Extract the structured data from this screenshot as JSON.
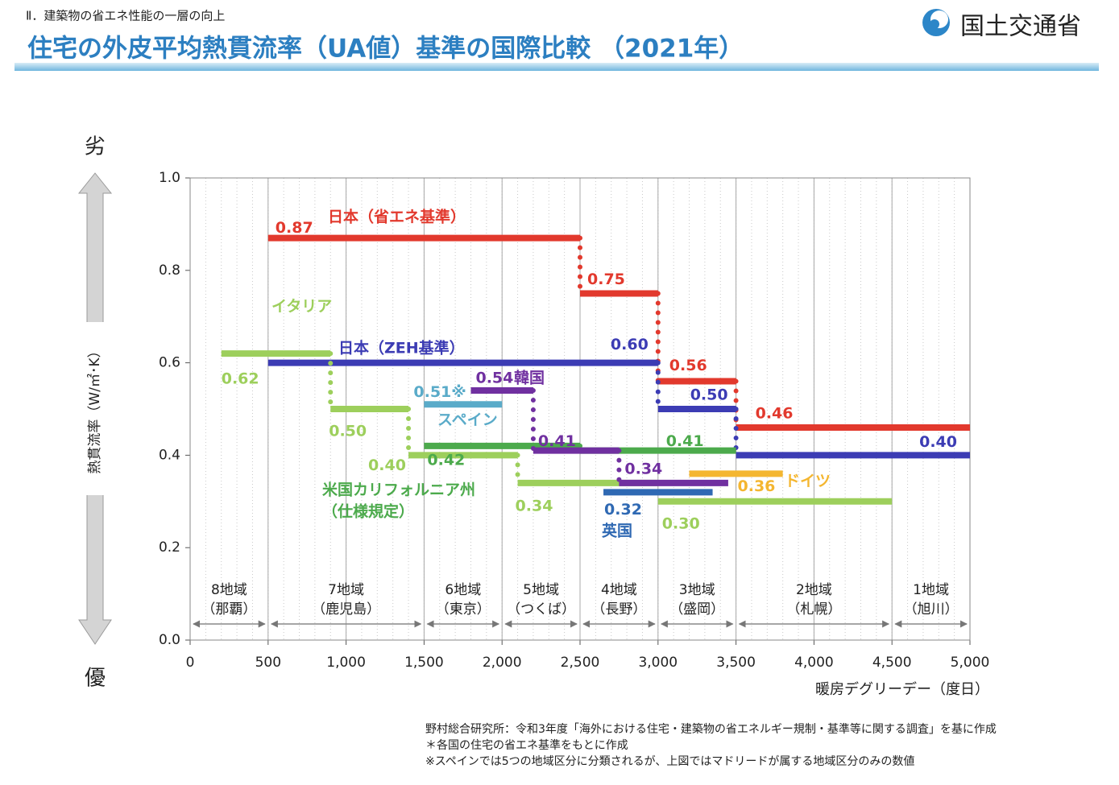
{
  "header": {
    "section": "Ⅱ．建築物の省エネ性能の一層の向上",
    "title": "住宅の外皮平均熱貫流率（UA値）基準の国際比較 （2021年）",
    "logo": "国土交通省"
  },
  "chart_data": {
    "type": "step",
    "y_label": "熱貫流率（W/㎡･K）",
    "y_top_label": "劣",
    "y_bottom_label": "優",
    "x_label": "暖房デグリーデー（度日）",
    "xlim": [
      0,
      5000
    ],
    "xticks": [
      0,
      500,
      {
        "value": 1000,
        "label": "1,000"
      },
      {
        "value": 1500,
        "label": "1,500"
      },
      {
        "value": 2000,
        "label": "2,000"
      },
      {
        "value": 2500,
        "label": "2,500"
      },
      {
        "value": 3000,
        "label": "3,000"
      },
      {
        "value": 3500,
        "label": "3,500"
      },
      {
        "value": 4000,
        "label": "4,000"
      },
      {
        "value": 4500,
        "label": "4,500"
      },
      {
        "value": 5000,
        "label": "5,000"
      }
    ],
    "ylim": [
      0,
      1
    ],
    "yticks": [
      {
        "value": 0,
        "label": "0.0"
      },
      0.2,
      0.4,
      0.6,
      0.8,
      {
        "value": 1,
        "label": "1.0"
      }
    ],
    "grid": "x",
    "regions": [
      {
        "name": "8地域",
        "city": "（那覇）",
        "range": [
          0,
          500
        ]
      },
      {
        "name": "7地域",
        "city": "（鹿児島）",
        "range": [
          500,
          1500
        ]
      },
      {
        "name": "6地域",
        "city": "（東京）",
        "range": [
          1500,
          2000
        ]
      },
      {
        "name": "5地域",
        "city": "（つくば）",
        "range": [
          2000,
          2500
        ]
      },
      {
        "name": "4地域",
        "city": "（長野）",
        "range": [
          2500,
          3000
        ]
      },
      {
        "name": "3地域",
        "city": "（盛岡）",
        "range": [
          3000,
          3500
        ]
      },
      {
        "name": "2地域",
        "city": "（札幌）",
        "range": [
          3500,
          4500
        ]
      },
      {
        "name": "1地域",
        "city": "（旭川）",
        "range": [
          4500,
          5000
        ]
      }
    ],
    "series": [
      {
        "name": [
          "日本（省エネ基準）"
        ],
        "color": "#e2392d",
        "x": [
          [
            500,
            2500
          ],
          [
            2500,
            3000
          ],
          [
            3000,
            3500
          ],
          [
            3500,
            5000
          ]
        ],
        "values": [
          0.87,
          0.75,
          0.56,
          0.46
        ],
        "value_labels": [
          "0.87",
          "0.75",
          "0.56",
          "0.46"
        ]
      },
      {
        "name": [
          "日本（ZEH基準）"
        ],
        "color": "#3c3cb4",
        "x": [
          [
            500,
            3000
          ],
          [
            3000,
            3500
          ],
          [
            3500,
            5000
          ]
        ],
        "values": [
          0.6,
          0.5,
          0.4
        ],
        "value_labels": [
          "0.60",
          "0.50",
          "0.40"
        ]
      },
      {
        "name": [
          "イタリア"
        ],
        "color": "#9dcf5c",
        "x": [
          [
            200,
            900
          ],
          [
            900,
            1400
          ],
          [
            1400,
            2100
          ],
          [
            2100,
            3000
          ],
          [
            3000,
            4500
          ]
        ],
        "values": [
          0.62,
          0.5,
          0.4,
          0.34,
          0.3
        ],
        "value_labels": [
          "0.62",
          "0.50",
          "0.40",
          "0.34",
          "0.30"
        ]
      },
      {
        "name": [
          "米国カリフォルニア州",
          "（仕様規定）"
        ],
        "color": "#4caa4c",
        "x": [
          [
            1500,
            2500
          ],
          [
            2500,
            3500
          ]
        ],
        "values": [
          0.42,
          0.41
        ],
        "value_labels": [
          "0.42",
          "0.41"
        ]
      },
      {
        "name": [
          "スペイン"
        ],
        "color": "#5aabc9",
        "x": [
          [
            1500,
            2000
          ]
        ],
        "values": [
          0.51
        ],
        "value_labels": [
          "0.51※"
        ]
      },
      {
        "name": [
          "韓国"
        ],
        "color": "#7030a0",
        "x": [
          [
            1800,
            2200
          ],
          [
            2200,
            2750
          ],
          [
            2750,
            3450
          ]
        ],
        "values": [
          0.54,
          0.41,
          0.34
        ],
        "value_labels": [
          "0.54",
          "0.41",
          "0.34"
        ]
      },
      {
        "name": [
          "英国"
        ],
        "color": "#2f69b3",
        "x": [
          [
            2650,
            3350
          ]
        ],
        "values": [
          0.32
        ],
        "value_labels": [
          "0.32"
        ]
      },
      {
        "name": [
          "ドイツ"
        ],
        "color": "#f4b630",
        "x": [
          [
            3200,
            3800
          ]
        ],
        "values": [
          0.36
        ],
        "value_labels": [
          "0.36"
        ]
      }
    ],
    "notes": [
      "野村総合研究所：令和3年度「海外における住宅・建築物の省エネルギー規制・基準等に関する調査」を基に作成",
      "＊各国の住宅の省エネ基準をもとに作成",
      "※スペインでは5つの地域区分に分類されるが、上図ではマドリードが属する地域区分のみの数値"
    ]
  }
}
